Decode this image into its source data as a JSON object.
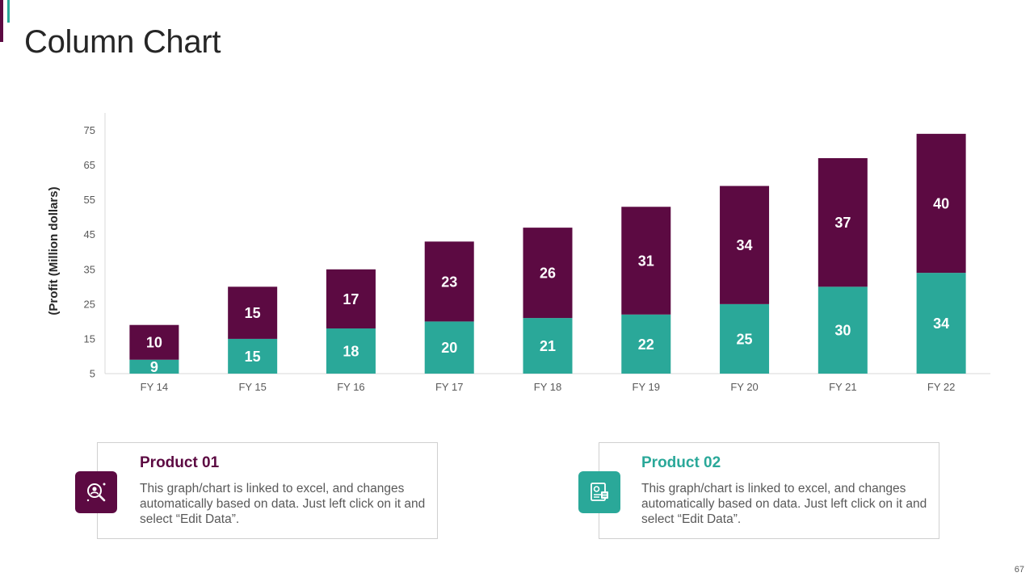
{
  "page": {
    "title": "Column Chart",
    "page_number": "67"
  },
  "colors": {
    "primary": "#5c0a42",
    "secondary": "#2aa899",
    "accent_teal": "#2aa899"
  },
  "chart_data": {
    "type": "bar",
    "stacked": true,
    "categories": [
      "FY 14",
      "FY 15",
      "FY 16",
      "FY 17",
      "FY 18",
      "FY 19",
      "FY 20",
      "FY 21",
      "FY 22"
    ],
    "series": [
      {
        "name": "Product 02",
        "color": "#2aa899",
        "values": [
          9,
          15,
          18,
          20,
          21,
          22,
          25,
          30,
          34
        ]
      },
      {
        "name": "Product 01",
        "color": "#5c0a42",
        "values": [
          10,
          15,
          17,
          23,
          26,
          31,
          34,
          37,
          40
        ]
      }
    ],
    "ylabel": "(Profit  (Million dollars)",
    "xlabel": "",
    "ylim": [
      5,
      80
    ],
    "yticks": [
      5,
      15,
      25,
      35,
      45,
      55,
      65,
      75
    ],
    "grid": false,
    "data_labels": true
  },
  "cards": [
    {
      "title": "Product 01",
      "text": "This graph/chart is linked to excel, and changes automatically based on data. Just left click on it and select “Edit Data”.",
      "icon": "search-person-icon"
    },
    {
      "title": "Product 02",
      "text": "This graph/chart is linked to excel, and changes automatically based on data. Just left click on it and select “Edit Data”.",
      "icon": "document-profile-icon"
    }
  ]
}
